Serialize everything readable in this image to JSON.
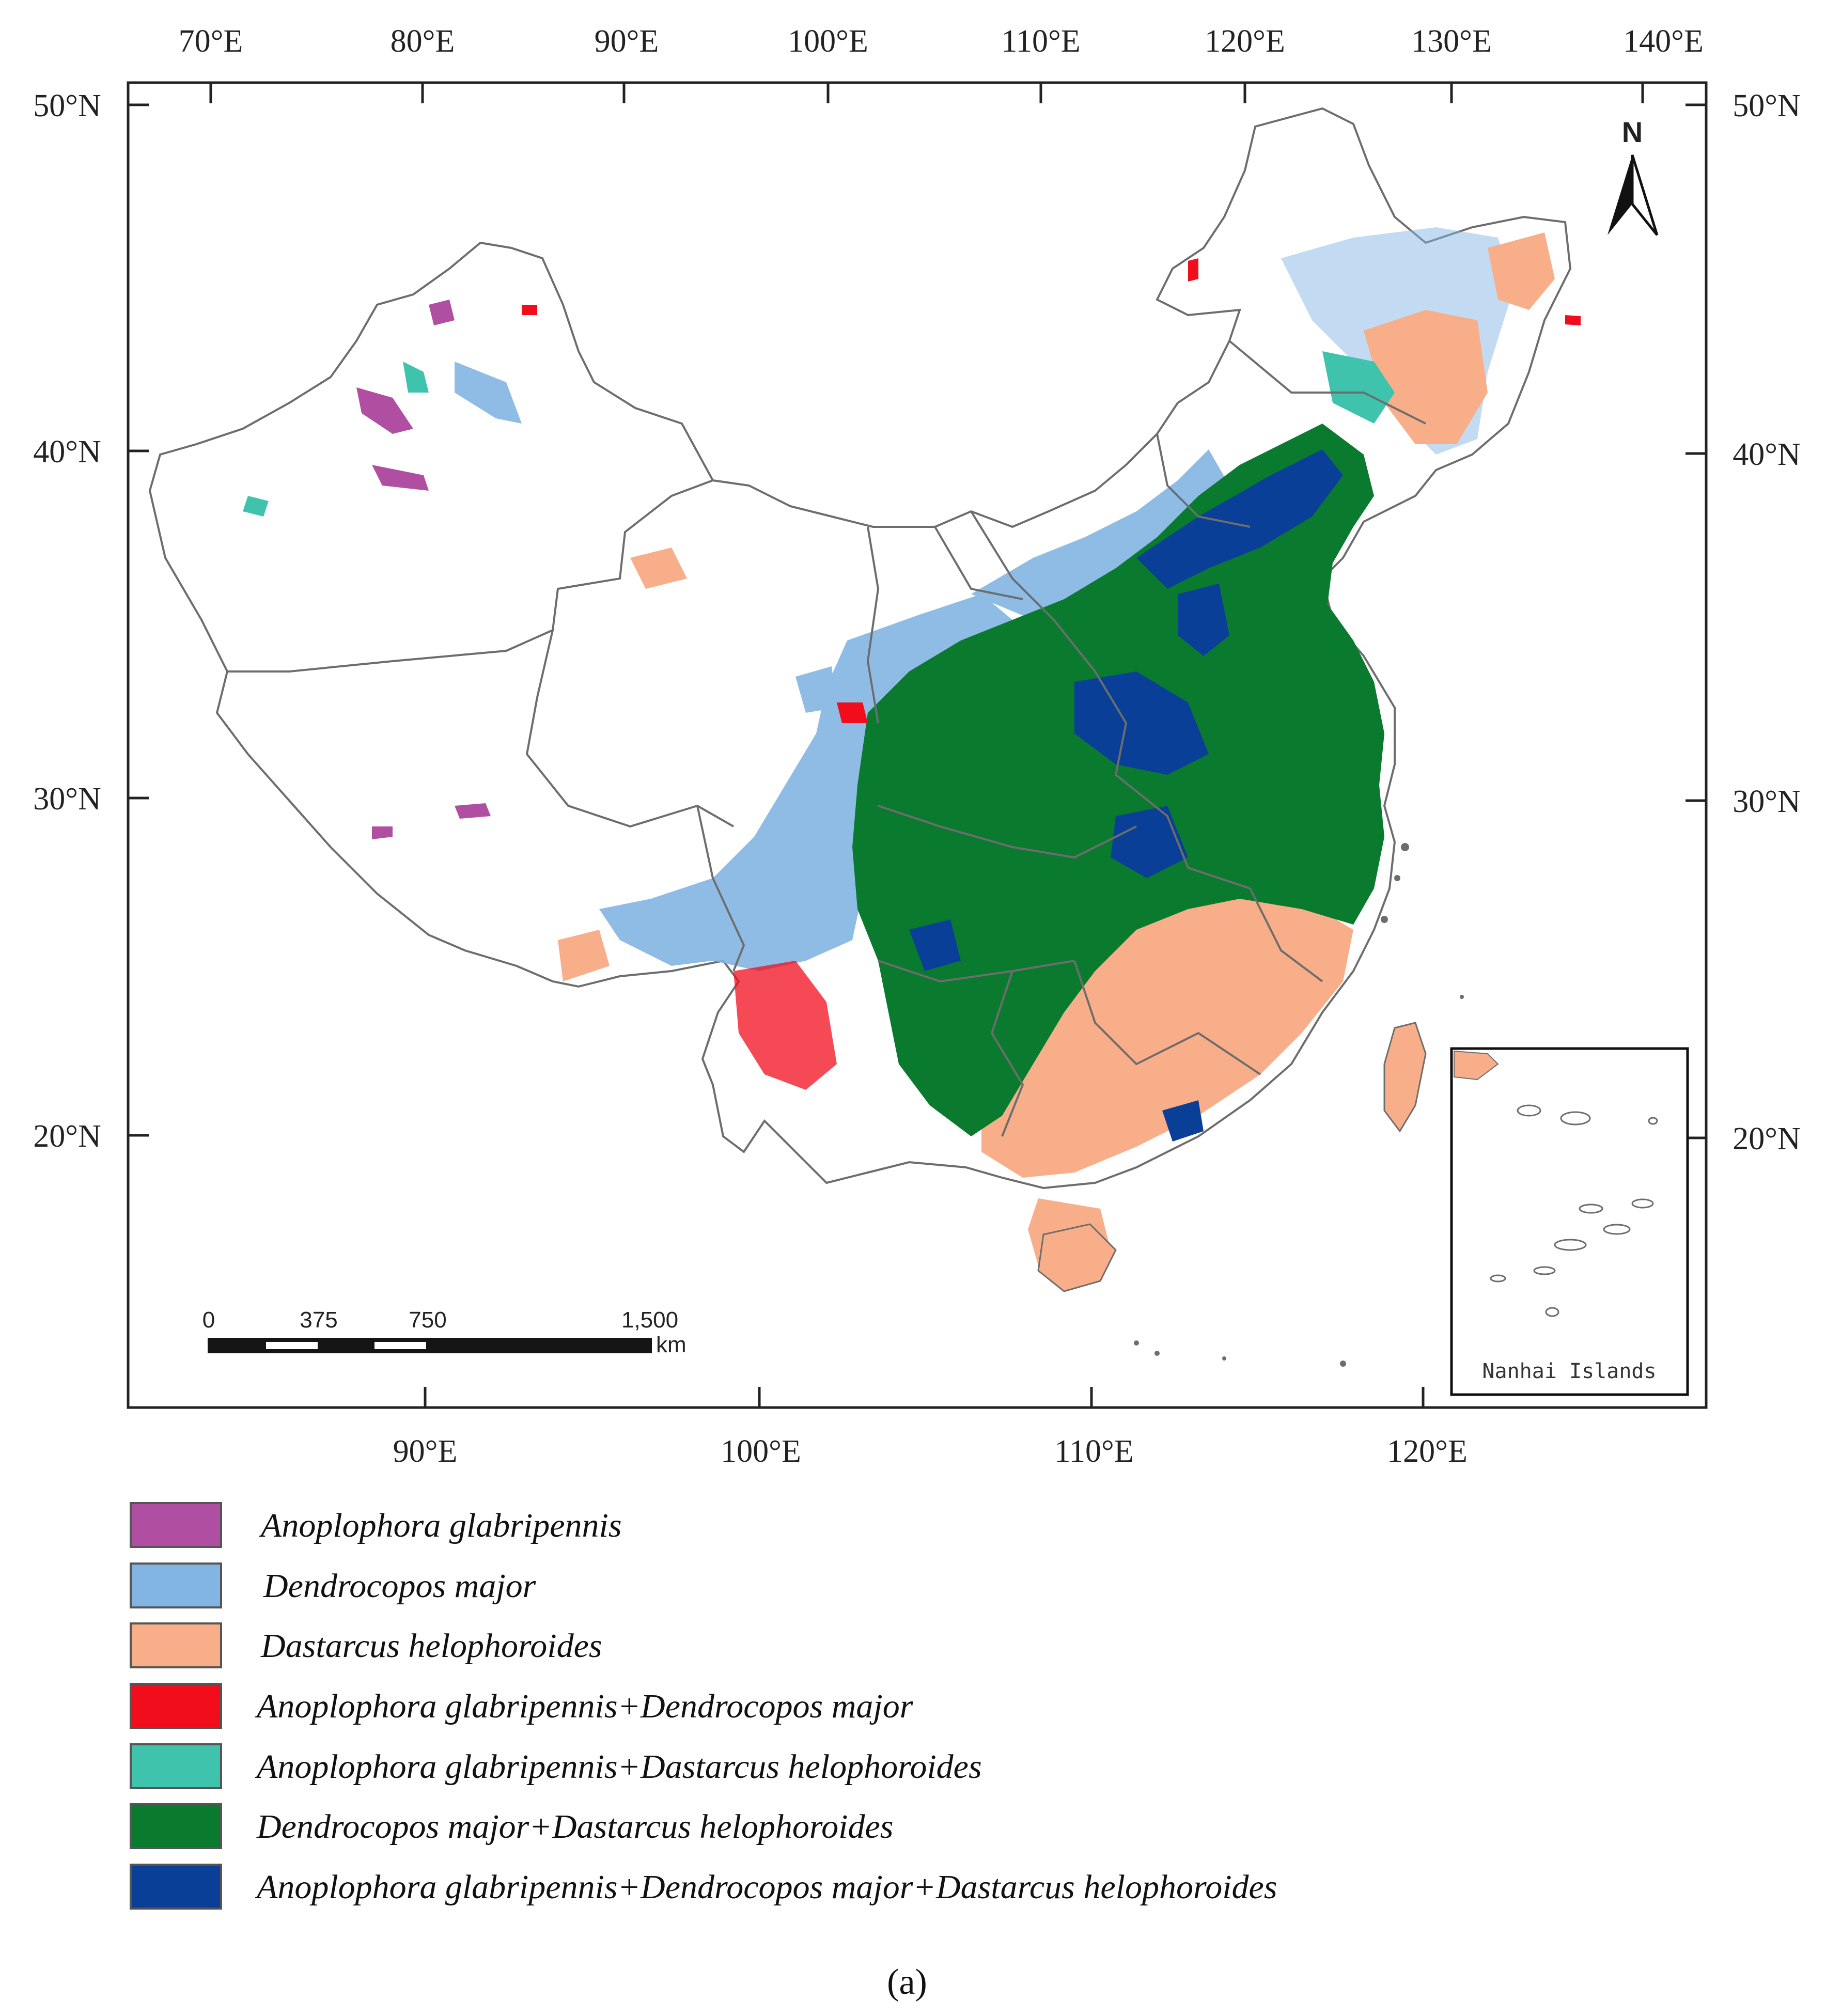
{
  "colors": {
    "anoplophora": "#b04fa2",
    "dendrocopos": "#83b5e3",
    "dastarcus": "#f8ae88",
    "ano_den": "#f20d1c",
    "ano_das": "#3fc3ad",
    "den_das": "#0a7a2f",
    "all_three": "#0a3f98",
    "border": "#6d6d6d"
  },
  "top_axis": {
    "labels": [
      "70°E",
      "80°E",
      "90°E",
      "100°E",
      "110°E",
      "120°E",
      "130°E",
      "140°E"
    ]
  },
  "bottom_axis": {
    "labels": [
      "90°E",
      "100°E",
      "110°E",
      "120°E"
    ]
  },
  "left_axis": {
    "labels": [
      "50°N",
      "40°N",
      "30°N",
      "20°N"
    ]
  },
  "right_axis": {
    "labels": [
      "50°N",
      "40°N",
      "30°N",
      "20°N"
    ]
  },
  "north_arrow": {
    "label": "N"
  },
  "scale_bar": {
    "labels": [
      "0",
      "375",
      "750",
      "1,500"
    ],
    "unit": "km"
  },
  "inset": {
    "label": "Nanhai Islands"
  },
  "legend": [
    {
      "label": "Anoplophora glabripennis",
      "color": "#b04fa2"
    },
    {
      "label": "Dendrocopos major",
      "color": "#83b5e3"
    },
    {
      "label": "Dastarcus helophoroides",
      "color": "#f8ae88"
    },
    {
      "label": "Anoplophora glabripennis+Dendrocopos major",
      "color": "#f20d1c"
    },
    {
      "label": "Anoplophora glabripennis+Dastarcus helophoroides",
      "color": "#3fc3ad"
    },
    {
      "label": "Dendrocopos major+Dastarcus helophoroides",
      "color": "#0a7a2f"
    },
    {
      "label": "Anoplophora glabripennis+Dendrocopos major+Dastarcus helophoroides",
      "color": "#0a3f98"
    }
  ],
  "caption": "(a)"
}
